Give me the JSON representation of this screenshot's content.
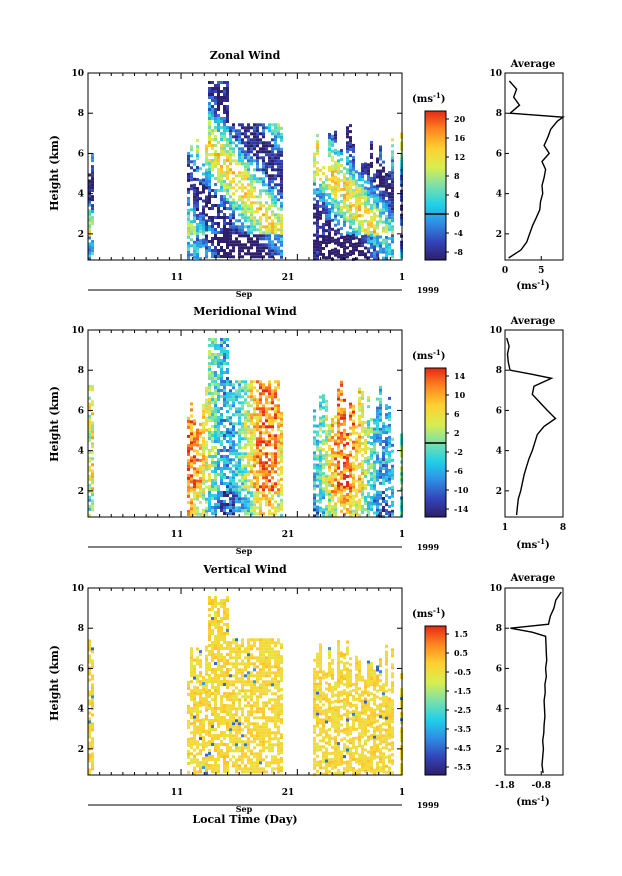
{
  "figure": {
    "xlabel": "Local Time (Day)",
    "month_label": "Sep",
    "year_label": "1999",
    "x_ticks": [
      "11",
      "21",
      "1"
    ],
    "colorbar_unit": "(ms",
    "colorbar_unit_sup": "-1",
    "colorbar_unit_close": ")",
    "profile_title": "Average"
  },
  "chart_data": [
    {
      "type": "heatmap",
      "title": "Zonal Wind",
      "ylabel": "Height (km)",
      "xlabel": "",
      "ylim": [
        0.7,
        10
      ],
      "y_ticks": [
        "2",
        "4",
        "6",
        "8",
        "10"
      ],
      "colorbar": {
        "ticks": [
          "20",
          "16",
          "12",
          "8",
          "4",
          "0",
          "-4",
          "-8"
        ],
        "range": [
          -10,
          22
        ],
        "zero_line": 0
      },
      "profile": {
        "title": "Average",
        "xlabel": "(ms-1)",
        "xlim": [
          0,
          8
        ],
        "x_ticks": [
          "0",
          "5"
        ],
        "heights": [
          0.8,
          1.2,
          1.6,
          2.0,
          2.4,
          2.8,
          3.2,
          3.6,
          4.0,
          4.4,
          4.8,
          5.2,
          5.6,
          6.0,
          6.4,
          6.8,
          7.2,
          7.6,
          7.8,
          8.0,
          8.4,
          8.8,
          9.2,
          9.6
        ],
        "values": [
          0.5,
          2.2,
          3.0,
          3.4,
          3.8,
          4.3,
          4.8,
          4.9,
          5.2,
          5.1,
          5.4,
          5.6,
          5.1,
          6.1,
          5.4,
          5.9,
          6.3,
          7.2,
          8.0,
          0.7,
          2.0,
          1.2,
          1.6,
          0.6
        ]
      }
    },
    {
      "type": "heatmap",
      "title": "Meridional Wind",
      "ylabel": "Height (km)",
      "xlabel": "",
      "ylim": [
        0.7,
        10
      ],
      "y_ticks": [
        "2",
        "4",
        "6",
        "8",
        "10"
      ],
      "colorbar": {
        "ticks": [
          "14",
          "10",
          "6",
          "2",
          "-2",
          "-6",
          "-10",
          "-14"
        ],
        "range": [
          -16,
          16
        ],
        "zero_line": 0
      },
      "profile": {
        "title": "Average",
        "xlabel": "(ms-1)",
        "xlim": [
          1,
          8
        ],
        "x_ticks": [
          "1",
          "8"
        ],
        "heights": [
          0.8,
          1.2,
          1.6,
          2.0,
          2.4,
          2.8,
          3.2,
          3.6,
          4.0,
          4.4,
          4.8,
          5.2,
          5.6,
          6.0,
          6.4,
          6.8,
          7.2,
          7.6,
          7.8,
          8.0,
          8.4,
          8.8,
          9.2,
          9.6
        ],
        "values": [
          2.4,
          2.5,
          2.6,
          2.9,
          3.1,
          3.3,
          3.6,
          3.9,
          4.3,
          4.6,
          4.9,
          5.7,
          7.1,
          6.1,
          5.2,
          4.3,
          4.5,
          6.6,
          4.2,
          1.6,
          1.4,
          1.3,
          1.5,
          1.2
        ]
      }
    },
    {
      "type": "heatmap",
      "title": "Vertical Wind",
      "ylabel": "Height (km)",
      "xlabel": "Local Time (Day)",
      "ylim": [
        0.7,
        10
      ],
      "y_ticks": [
        "2",
        "4",
        "6",
        "8",
        "10"
      ],
      "colorbar": {
        "ticks": [
          "1.5",
          "0.5",
          "-0.5",
          "-1.5",
          "-2.5",
          "-3.5",
          "-4.5",
          "-5.5"
        ],
        "range": [
          -6.0,
          2.0
        ]
      },
      "profile": {
        "title": "Average",
        "xlabel": "(ms-1)",
        "xlim": [
          -1.8,
          -0.2
        ],
        "x_ticks": [
          "-1.8",
          "-0.8"
        ],
        "heights": [
          0.8,
          1.2,
          1.6,
          2.0,
          2.4,
          2.8,
          3.2,
          3.6,
          4.0,
          4.4,
          4.8,
          5.2,
          5.6,
          6.0,
          6.4,
          6.8,
          7.2,
          7.6,
          7.8,
          8.0,
          8.2,
          8.6,
          9.0,
          9.4,
          9.8
        ],
        "values": [
          -0.75,
          -0.78,
          -0.76,
          -0.74,
          -0.76,
          -0.73,
          -0.72,
          -0.7,
          -0.71,
          -0.72,
          -0.69,
          -0.7,
          -0.66,
          -0.68,
          -0.65,
          -0.66,
          -0.67,
          -0.68,
          -1.05,
          -1.65,
          -0.6,
          -0.55,
          -0.45,
          -0.4,
          -0.25
        ]
      }
    }
  ]
}
